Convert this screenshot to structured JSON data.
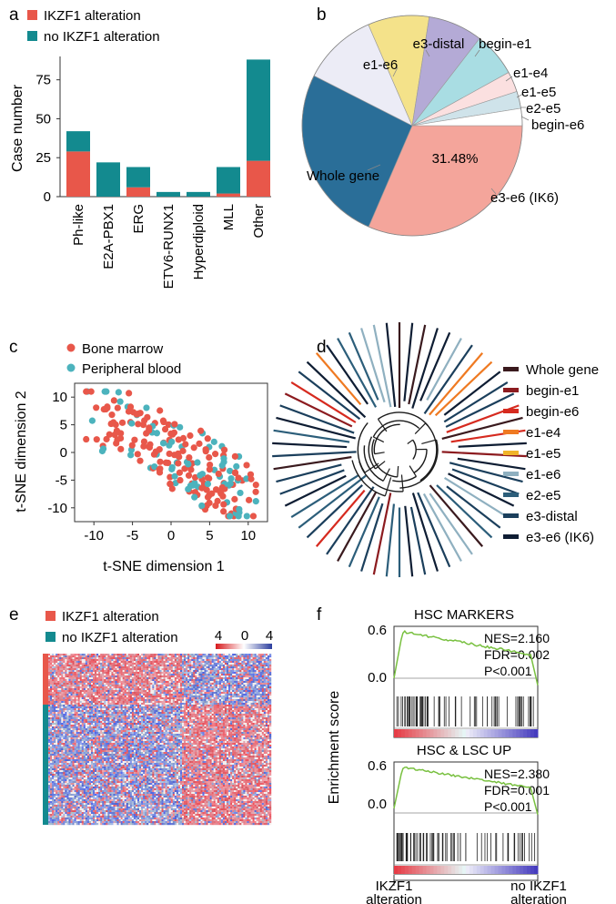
{
  "panels": {
    "a": "a",
    "b": "b",
    "c": "c",
    "d": "d",
    "e": "e",
    "f": "f"
  },
  "colors": {
    "alteration": "#e8574a",
    "no_alteration": "#138a8f",
    "pie_dark": "#2a6e98",
    "pie_salmon": "#f4a59b",
    "tsne_red": "#e8574a",
    "tsne_teal": "#4cb3bd",
    "gsea_line": "#78c03f"
  },
  "chart_data": [
    {
      "id": "a",
      "type": "bar",
      "stacked": true,
      "legend": [
        "IKZF1 alteration",
        "no IKZF1 alteration"
      ],
      "categories": [
        "Ph-like",
        "E2A-PBX1",
        "ERG",
        "ETV6-RUNX1",
        "Hyperdiploid",
        "MLL",
        "Other"
      ],
      "series": [
        {
          "name": "IKZF1 alteration",
          "values": [
            29,
            0,
            6,
            0,
            0,
            2,
            23
          ]
        },
        {
          "name": "no IKZF1 alteration",
          "values": [
            13,
            22,
            13,
            3,
            3,
            17,
            65
          ]
        }
      ],
      "ylabel": "Case number",
      "yticks": [
        "0",
        "25",
        "50",
        "75"
      ],
      "ylim": [
        0,
        90
      ]
    },
    {
      "id": "b",
      "type": "pie",
      "slices": [
        {
          "label": "e3-e6 (IK6)",
          "value": 31.48
        },
        {
          "label": "Whole gene",
          "value": 26
        },
        {
          "label": "e1-e6",
          "value": 11
        },
        {
          "label": "e3-distal",
          "value": 9
        },
        {
          "label": "begin-e1",
          "value": 8
        },
        {
          "label": "e1-e4",
          "value": 6.5
        },
        {
          "label": "e1-e5",
          "value": 3
        },
        {
          "label": "e2-e5",
          "value": 2.5
        },
        {
          "label": "begin-e6",
          "value": 2.52
        }
      ],
      "annotation": "31.48%"
    },
    {
      "id": "c",
      "type": "scatter",
      "legend": [
        "Bone marrow",
        "Peripheral blood"
      ],
      "xlabel": "t-SNE dimension 1",
      "ylabel": "t-SNE dimension 2",
      "xticks": [
        "-10",
        "-5",
        "0",
        "5",
        "10"
      ],
      "yticks": [
        "10",
        "5",
        "0",
        "-5",
        "-10"
      ],
      "xlim": [
        -12.5,
        12.5
      ],
      "ylim": [
        -12.5,
        12.5
      ]
    },
    {
      "id": "d",
      "type": "dendrogram",
      "legend": [
        "Whole gene",
        "begin-e1",
        "begin-e6",
        "e1-e4",
        "e1-e5",
        "e1-e6",
        "e2-e5",
        "e3-distal",
        "e3-e6 (IK6)"
      ]
    },
    {
      "id": "e",
      "type": "heatmap",
      "legend": [
        "IKZF1 alteration",
        "no IKZF1 alteration"
      ],
      "scale_ticks": [
        "4",
        "0",
        "4"
      ]
    },
    {
      "id": "f",
      "type": "line",
      "ylabel": "Enrichment score",
      "plots": [
        {
          "title": "HSC MARKERS",
          "stats": [
            "NES=2.160",
            "FDR=0.002",
            "P<0.001"
          ],
          "yticks": [
            "0.6",
            "0.0"
          ],
          "peak": 0.6
        },
        {
          "title": "HSC & LSC UP",
          "stats": [
            "NES=2.380",
            "FDR=0.001",
            "P<0.001"
          ],
          "yticks": [
            "0.6",
            "0.0"
          ],
          "peak": 0.62
        }
      ],
      "xlabels": {
        "left": [
          "IKZF1",
          "alteration"
        ],
        "right": [
          "no IKZF1",
          "alteration"
        ]
      }
    }
  ]
}
